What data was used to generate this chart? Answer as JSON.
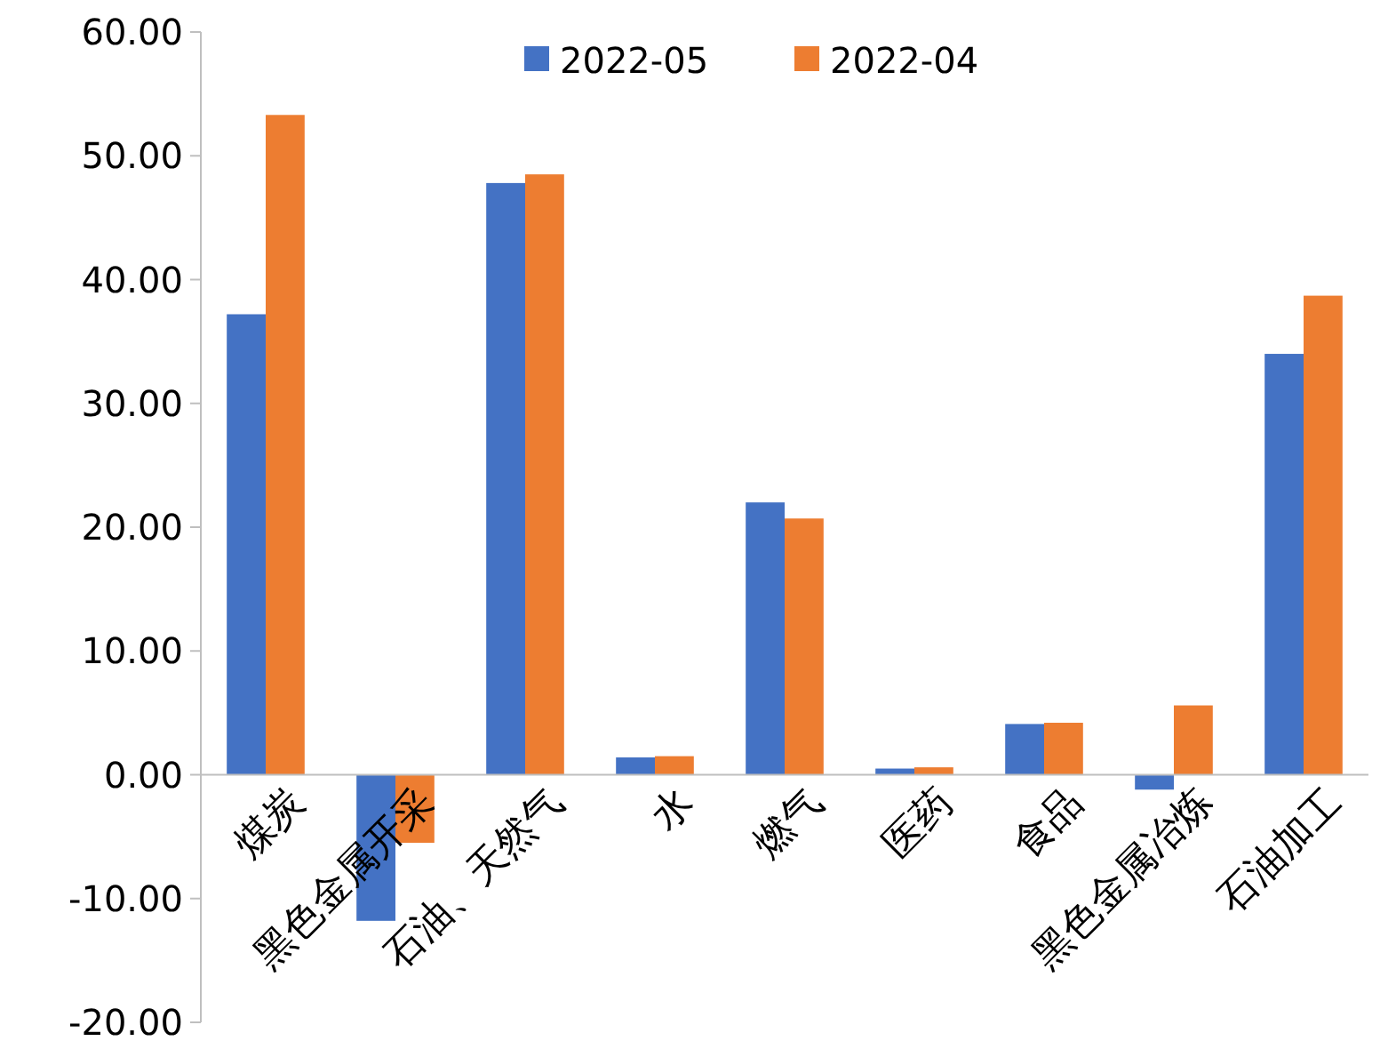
{
  "chart_data": {
    "type": "bar",
    "categories": [
      "煤炭",
      "黑色金属开采",
      "石油、天然气",
      "水",
      "燃气",
      "医药",
      "食品",
      "黑色金属冶炼",
      "石油加工"
    ],
    "series": [
      {
        "name": "2022-05",
        "color": "#4472c4",
        "values": [
          37.2,
          -11.8,
          47.8,
          1.4,
          22.0,
          0.5,
          4.1,
          -1.2,
          34.0
        ]
      },
      {
        "name": "2022-04",
        "color": "#ed7d31",
        "values": [
          53.3,
          -5.5,
          48.5,
          1.5,
          20.7,
          0.6,
          4.2,
          5.6,
          38.7
        ]
      }
    ],
    "ylim": [
      -20,
      60
    ],
    "yticks": [
      {
        "value": -20,
        "label": "-20.00"
      },
      {
        "value": -10,
        "label": "-10.00"
      },
      {
        "value": 0,
        "label": "0.00"
      },
      {
        "value": 10,
        "label": "10.00"
      },
      {
        "value": 20,
        "label": "20.00"
      },
      {
        "value": 30,
        "label": "30.00"
      },
      {
        "value": 40,
        "label": "40.00"
      },
      {
        "value": 50,
        "label": "50.00"
      },
      {
        "value": 60,
        "label": "60.00"
      }
    ],
    "grid": false,
    "legend": "top"
  }
}
